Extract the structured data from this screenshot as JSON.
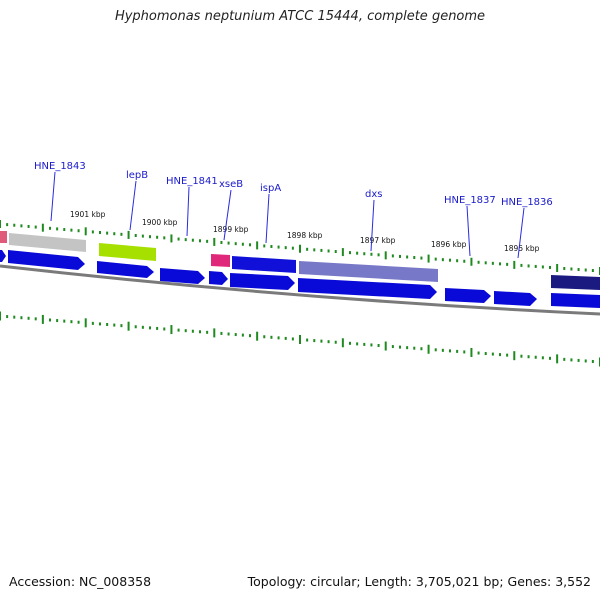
{
  "title": "Hyphomonas neptunium ATCC 15444, complete genome",
  "footer": {
    "accession": "Accession: NC_008358",
    "summary": "Topology: circular; Length: 3,705,021 bp; Genes: 3,552"
  },
  "colors": {
    "cds": "#0a0ad8",
    "rrna_pink": "#e0287a",
    "lepB_green": "#9acd00",
    "grey_feature": "#b8b8b8",
    "lavender_feature": "#9a9ad0",
    "backbone": "#8a8a8a",
    "tick_green": "#1f8a1f",
    "label_blue": "#1a1acc"
  },
  "kbp_labels": [
    "1901 kbp",
    "1900 kbp",
    "1899 kbp",
    "1898 kbp",
    "1897 kbp",
    "1896 kbp",
    "1895 kbp"
  ],
  "gene_labels": [
    "HNE_1843",
    "lepB",
    "HNE_1841",
    "xseB",
    "ispA",
    "dxs",
    "HNE_1837",
    "HNE_1836"
  ]
}
